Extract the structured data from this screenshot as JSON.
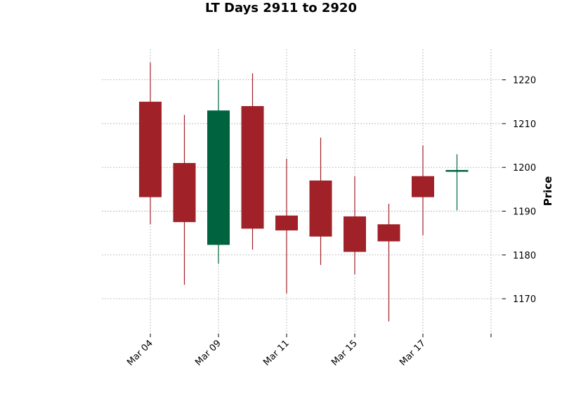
{
  "chart_data": {
    "type": "candlestick",
    "title": "LT Days 2911 to 2920",
    "ylabel": "Price",
    "xlabel": "",
    "ylim": [
      1162,
      1227
    ],
    "yticks": [
      1170,
      1180,
      1190,
      1200,
      1210,
      1220
    ],
    "x_tick_labels": [
      "Mar 04",
      "Mar 09",
      "Mar 11",
      "Mar 15",
      "Mar 17",
      ""
    ],
    "x_tick_positions": [
      0,
      2,
      4,
      6,
      8,
      10
    ],
    "grid": true,
    "colors": {
      "up": "#006340",
      "down": "#a02128",
      "grid": "#b0b0b0"
    },
    "candles": [
      {
        "index": 0,
        "open": 1215.0,
        "high": 1224.0,
        "low": 1187.0,
        "close": 1193.2
      },
      {
        "index": 1,
        "open": 1201.0,
        "high": 1212.0,
        "low": 1173.2,
        "close": 1187.5
      },
      {
        "index": 2,
        "open": 1182.3,
        "high": 1220.0,
        "low": 1178.0,
        "close": 1213.0
      },
      {
        "index": 3,
        "open": 1214.0,
        "high": 1221.5,
        "low": 1181.2,
        "close": 1186.0
      },
      {
        "index": 4,
        "open": 1189.0,
        "high": 1202.0,
        "low": 1171.2,
        "close": 1185.6
      },
      {
        "index": 5,
        "open": 1197.0,
        "high": 1206.8,
        "low": 1177.7,
        "close": 1184.2
      },
      {
        "index": 6,
        "open": 1188.8,
        "high": 1198.0,
        "low": 1175.6,
        "close": 1180.7
      },
      {
        "index": 7,
        "open": 1187.0,
        "high": 1191.7,
        "low": 1164.8,
        "close": 1183.1
      },
      {
        "index": 8,
        "open": 1198.0,
        "high": 1205.0,
        "low": 1184.5,
        "close": 1193.2
      },
      {
        "index": 9,
        "open": 1199.0,
        "high": 1203.0,
        "low": 1190.2,
        "close": 1199.4
      }
    ]
  }
}
